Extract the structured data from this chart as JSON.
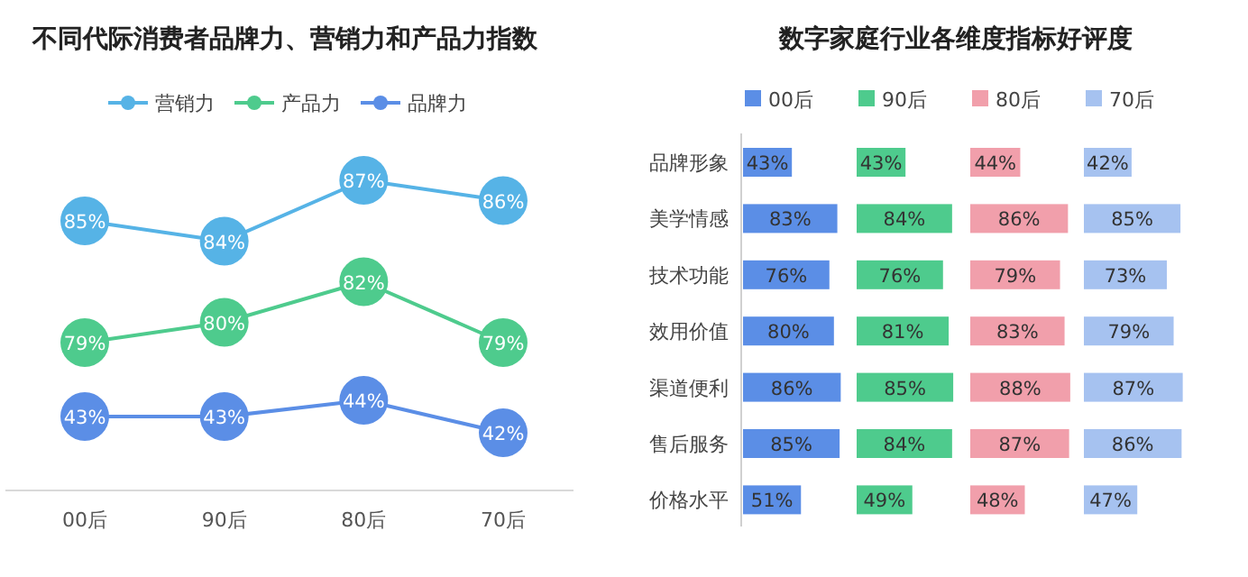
{
  "chart_data": [
    {
      "type": "line",
      "title": "不同代际消费者品牌力、营销力和产品力指数",
      "categories": [
        null,
        null,
        null,
        null
      ],
      "series": [
        {
          "name": "营销力",
          "color": "#56b3e6",
          "values": [
            85,
            84,
            87,
            86
          ],
          "value_labels": [
            "85%",
            "84%",
            "87%",
            "86%"
          ]
        },
        {
          "name": "产品力",
          "color": "#4ecb8d",
          "values": [
            79,
            80,
            82,
            79
          ],
          "value_labels": [
            "79%",
            "80%",
            "82%",
            "79%"
          ]
        }
      ],
      "tick_labels": false,
      "legend": "top",
      "marker": "circle",
      "line_style": "solid"
    },
    {
      "type": "line",
      "categories": [
        "00后",
        "90后",
        "80后",
        "70后"
      ],
      "series": [
        {
          "name": "品牌力",
          "color": "#5b8ee6",
          "values": [
            43,
            43,
            44,
            42
          ],
          "value_labels": [
            "43%",
            "43%",
            "44%",
            "42%"
          ]
        }
      ],
      "tick_labels": "x",
      "legend": "top",
      "marker": "circle",
      "line_style": "solid"
    },
    {
      "type": "bar",
      "orientation": "horizontal",
      "title": "数字家庭行业各维度指标好评度",
      "categories": [
        "品牌形象",
        "美学情感",
        "技术功能",
        "效用价值",
        "渠道便利",
        "售后服务",
        "价格水平"
      ],
      "series": [
        {
          "name": "00后",
          "color": "#5b8ee6",
          "values": [
            43,
            83,
            76,
            80,
            86,
            85,
            51
          ],
          "value_labels": [
            "43%",
            "83%",
            "76%",
            "80%",
            "86%",
            "85%",
            "51%"
          ]
        }
      ],
      "legend": "top"
    },
    {
      "type": "bar",
      "orientation": "horizontal",
      "categories": [
        null,
        null,
        null,
        null,
        null,
        null,
        null
      ],
      "series": [
        {
          "name": "90后",
          "color": "#4ecb8d",
          "values": [
            43,
            84,
            76,
            81,
            85,
            84,
            49
          ],
          "value_labels": [
            "43%",
            "84%",
            "76%",
            "81%",
            "85%",
            "84%",
            "49%"
          ]
        }
      ],
      "legend": "top",
      "tick_labels": false
    },
    {
      "type": "bar",
      "orientation": "horizontal",
      "categories": [
        null,
        null,
        null,
        null,
        null,
        null,
        null
      ],
      "series": [
        {
          "name": "80后",
          "color": "#f19fab",
          "values": [
            44,
            86,
            79,
            83,
            88,
            87,
            48
          ],
          "value_labels": [
            "44%",
            "86%",
            "79%",
            "83%",
            "88%",
            "87%",
            "48%"
          ]
        }
      ],
      "legend": "top",
      "tick_labels": false
    },
    {
      "type": "bar",
      "orientation": "horizontal",
      "categories": [
        null,
        null,
        null,
        null,
        null,
        null,
        null
      ],
      "series": [
        {
          "name": "70后",
          "color": "#a6c2f0",
          "values": [
            42,
            85,
            73,
            79,
            87,
            86,
            47
          ],
          "value_labels": [
            "42%",
            "85%",
            "73%",
            "79%",
            "87%",
            "86%",
            "47%"
          ]
        }
      ],
      "legend": "top",
      "tick_labels": false
    }
  ]
}
